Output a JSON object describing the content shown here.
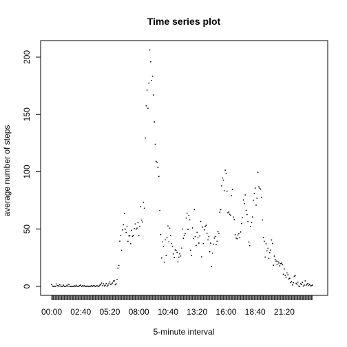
{
  "chart_data": {
    "type": "scatter",
    "title": "Time series plot",
    "xlabel": "5-minute interval",
    "ylabel": "average number of steps",
    "xlim": [
      0,
      288
    ],
    "ylim": [
      0,
      210
    ],
    "x_tick_labels": [
      {
        "index": 0,
        "label": "00:00"
      },
      {
        "index": 32,
        "label": "02:40"
      },
      {
        "index": 64,
        "label": "05:20"
      },
      {
        "index": 96,
        "label": "08:00"
      },
      {
        "index": 128,
        "label": "10:40"
      },
      {
        "index": 160,
        "label": "13:20"
      },
      {
        "index": 192,
        "label": "16:00"
      },
      {
        "index": 224,
        "label": "18:40"
      },
      {
        "index": 256,
        "label": "21:20"
      }
    ],
    "y_ticks": [
      0,
      50,
      100,
      150,
      200
    ],
    "point_count": 288,
    "grid": false,
    "values": [
      1.7,
      0.3,
      0.1,
      0.2,
      0.0,
      2.1,
      0.5,
      0.9,
      0.0,
      1.5,
      0.3,
      0.1,
      0.0,
      1.1,
      0.0,
      0.0,
      0.3,
      1.1,
      0.0,
      1.6,
      0.0,
      0.0,
      0.0,
      0.0,
      0.0,
      0.5,
      0.1,
      1.0,
      0.0,
      0.0,
      0.3,
      0.8,
      1.2,
      0.0,
      0.6,
      0.3,
      0.6,
      0.0,
      0.0,
      0.3,
      0.0,
      0.1,
      0.0,
      0.2,
      0.8,
      0.1,
      0.6,
      0.5,
      0.0,
      0.3,
      0.6,
      0.2,
      0.2,
      1.1,
      1.5,
      2.9,
      0.6,
      2.2,
      0.5,
      1.0,
      2.6,
      0.0,
      1.1,
      2.3,
      3.8,
      1.8,
      2.1,
      3.0,
      4.7,
      4.8,
      1.5,
      2.3,
      6.1,
      16.0,
      18.3,
      39.5,
      44.5,
      31.5,
      49.3,
      53.8,
      63.5,
      49.9,
      47.1,
      52.5,
      39.3,
      44.0,
      44.2,
      37.4,
      49.0,
      43.8,
      44.4,
      50.5,
      54.5,
      49.9,
      50.9,
      55.7,
      44.3,
      52.3,
      69.5,
      57.8,
      56.2,
      73.4,
      68.2,
      129.4,
      157.5,
      171.2,
      155.4,
      177.3,
      206.2,
      195.9,
      179.6,
      183.4,
      167.0,
      143.5,
      124.0,
      109.1,
      108.1,
      103.7,
      95.9,
      66.2,
      45.2,
      24.8,
      38.8,
      34.9,
      21.1,
      40.6,
      26.9,
      42.4,
      52.7,
      38.9,
      50.8,
      44.3,
      37.4,
      34.7,
      28.3,
      25.1,
      31.9,
      31.4,
      29.7,
      21.3,
      25.5,
      28.4,
      26.5,
      33.4,
      50.0,
      42.0,
      44.6,
      46.0,
      59.6,
      63.9,
      49.7,
      62.0,
      58.1,
      31.5,
      26.9,
      51.0,
      41.8,
      67.0,
      43.5,
      35.8,
      47.2,
      42.4,
      37.8,
      44.0,
      56.7,
      25.8,
      51.7,
      37.4,
      49.3,
      52.5,
      53.4,
      46.3,
      40.6,
      43.4,
      30.3,
      37.8,
      17.4,
      29.0,
      36.9,
      42.1,
      43.5,
      36.4,
      39.4,
      47.8,
      46.3,
      64.7,
      66.9,
      87.7,
      94.6,
      92.7,
      83.5,
      101.4,
      98.7,
      83.1,
      64.3,
      65.0,
      62.9,
      61.7,
      79.1,
      84.6,
      60.5,
      58.3,
      45.1,
      42.2,
      41.6,
      44.9,
      46.0,
      42.7,
      47.5,
      54.9,
      59.9,
      75.4,
      72.2,
      79.8,
      66.3,
      62.7,
      56.7,
      38.7,
      35.5,
      52.1,
      55.8,
      60.6,
      75.1,
      80.9,
      85.8,
      70.9,
      76.9,
      99.6,
      86.8,
      85.7,
      84.9,
      77.8,
      58.0,
      42.6,
      39.4,
      25.6,
      37.2,
      31.0,
      33.3,
      24.5,
      29.6,
      31.7,
      40.5,
      37.5,
      18.5,
      26.4,
      23.6,
      22.1,
      19.2,
      21.8,
      20.4,
      17.9,
      19.9,
      20.3,
      18.9,
      10.6,
      15.2,
      9.6,
      7.8,
      11.8,
      10.1,
      6.5,
      7.1,
      3.3,
      4.1,
      1.3,
      3.2,
      8.8,
      9.5,
      2.7,
      1.8,
      3.6,
      0.3,
      0.0,
      2.4,
      1.6,
      3.5,
      0.3,
      1.2,
      4.8,
      1.0,
      1.9,
      2.6,
      0.9,
      1.7,
      0.5,
      0.6,
      1.1
    ]
  }
}
